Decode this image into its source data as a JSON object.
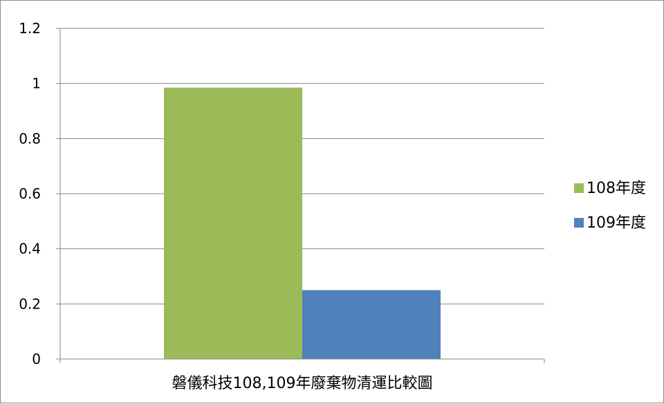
{
  "chart_data": {
    "type": "bar",
    "categories": [
      "磐儀科技108,109年廢棄物清運比較圖"
    ],
    "series": [
      {
        "name": "108年度",
        "values": [
          0.985
        ],
        "color": "#9bbb59"
      },
      {
        "name": "109年度",
        "values": [
          0.25
        ],
        "color": "#4f81bd"
      }
    ],
    "ylim": [
      0,
      1.2
    ],
    "yticks": [
      0,
      0.2,
      0.4,
      0.6,
      0.8,
      1,
      1.2
    ],
    "ytick_labels": [
      "0",
      "0.2",
      "0.4",
      "0.6",
      "0.8",
      "1",
      "1.2"
    ],
    "grid": true,
    "legend_position": "right",
    "gridline_color": "#868686",
    "axis_color": "#868686"
  }
}
